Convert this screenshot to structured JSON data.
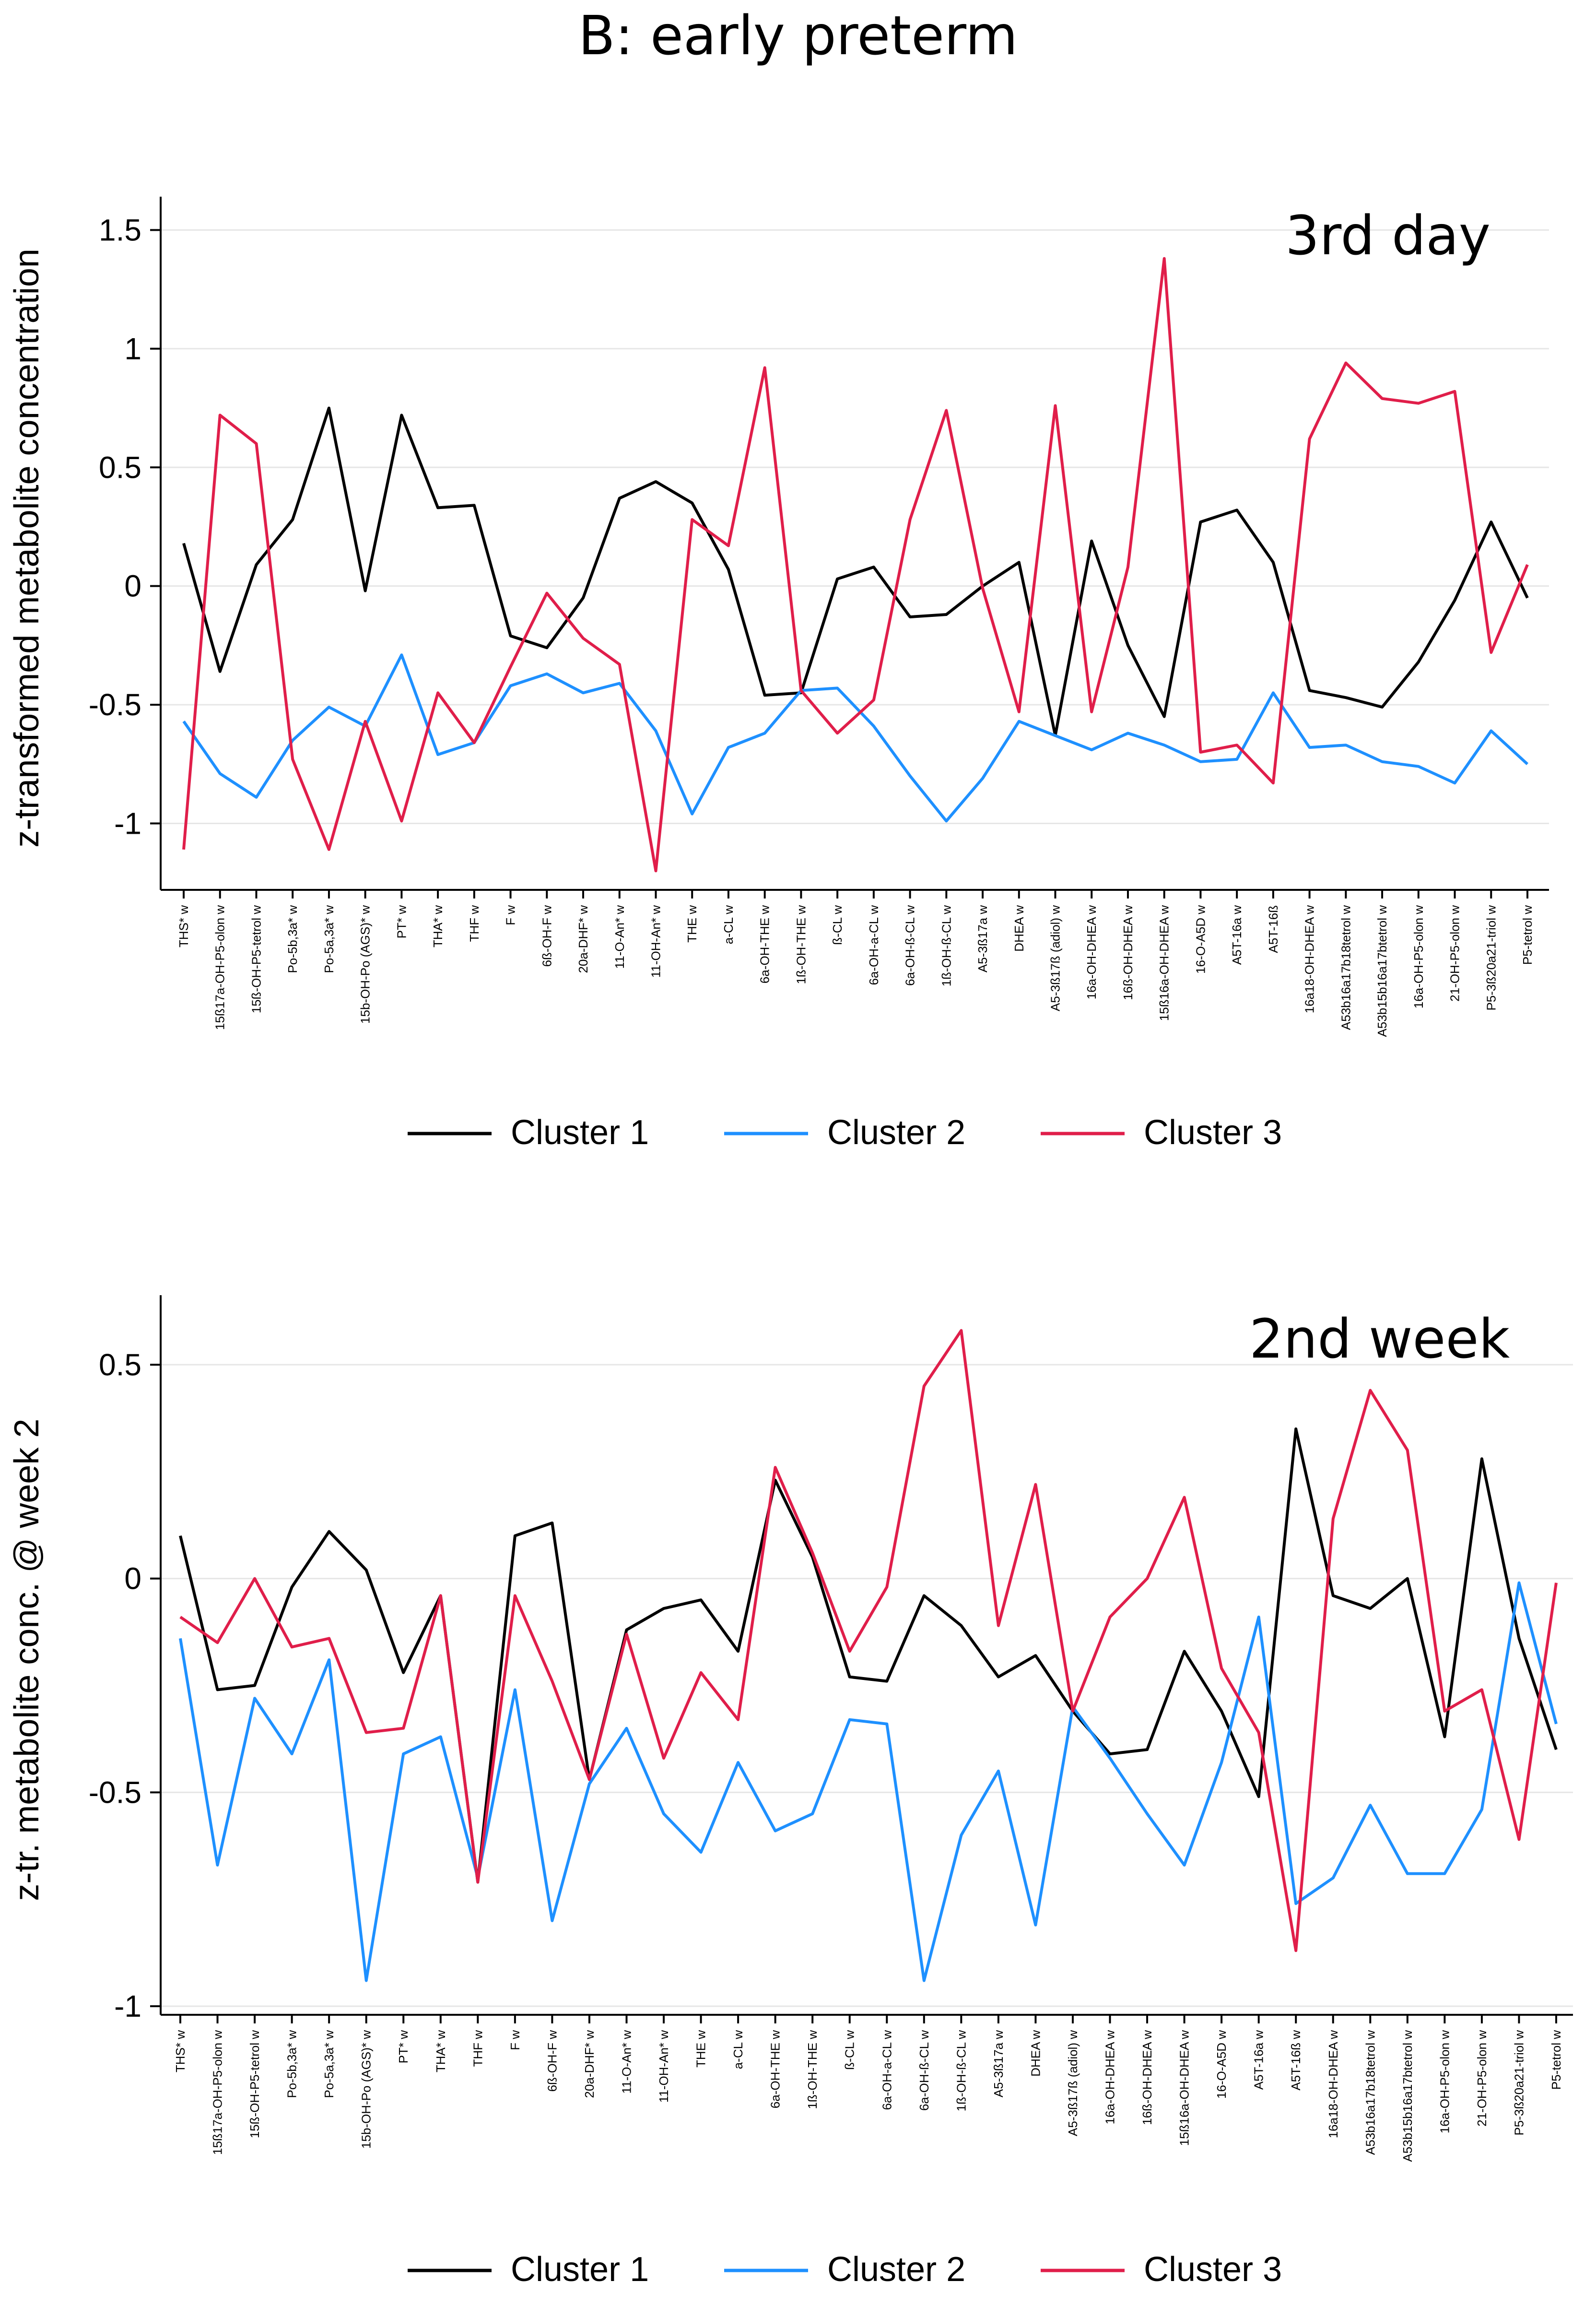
{
  "title": "B: early preterm",
  "colors": {
    "cluster1": "#000000",
    "cluster2": "#1e90ff",
    "cluster3": "#e01e4a"
  },
  "chart_data": [
    {
      "type": "line",
      "panel_label": "3rd day",
      "ylabel": "z-transformed metabolite concentration",
      "xlabel": "",
      "ylim": [
        -1.28,
        1.6
      ],
      "yticks": [
        -1,
        -0.5,
        0,
        0.5,
        1,
        1.5
      ],
      "ytick_labels": [
        "-1",
        "-0.5",
        "0",
        "0.5",
        "1",
        "1.5"
      ],
      "grid": true,
      "legend_position": "bottom",
      "categories": [
        "THS* w",
        "15ß17a-OH-P5-olon w",
        "15ß-OH-P5-tetrol w",
        "Po-5b,3a* w",
        "Po-5a,3a* w",
        "15b-OH-Po (AGS)* w",
        "PT* w",
        "THA* w",
        "THF w",
        "F w",
        "6ß-OH-F w",
        "20a-DHF* w",
        "11-O-An* w",
        "11-OH-An* w",
        "THE w",
        "a-CL w",
        "6a-OH-THE w",
        "1ß-OH-THE w",
        "ß-CL w",
        "6a-OH-a-CL w",
        "6a-OH-ß-CL w",
        "1ß-OH-ß-CL w",
        "A5-3ß17a w",
        "DHEA w",
        "A5-3ß17ß (adiol) w",
        "16a-OH-DHEA w",
        "16ß-OH-DHEA w",
        "15ß16a-OH-DHEA w",
        "16-O-A5D w",
        "A5T-16a w",
        "A5T-16ß",
        "16a18-OH-DHEA w",
        "A53b16a17b18tetrol w",
        "A53b15b16a17btetrol w",
        "16a-OH-P5-olon w",
        "21-OH-P5-olon w",
        "P5-3ß20a21-triol w",
        "P5-tetrol w"
      ],
      "series": [
        {
          "name": "Cluster 1",
          "values": [
            0.18,
            -0.36,
            0.09,
            0.28,
            0.75,
            -0.02,
            0.72,
            0.33,
            0.34,
            -0.21,
            -0.26,
            -0.05,
            0.37,
            0.44,
            0.35,
            0.07,
            -0.46,
            -0.45,
            0.03,
            0.08,
            -0.13,
            -0.12,
            0.0,
            0.1,
            -0.63,
            0.19,
            -0.25,
            -0.55,
            0.27,
            0.32,
            0.1,
            -0.44,
            -0.47,
            -0.51,
            -0.32,
            -0.06,
            0.27,
            -0.05
          ]
        },
        {
          "name": "Cluster 2",
          "values": [
            -0.57,
            -0.79,
            -0.89,
            -0.65,
            -0.51,
            -0.59,
            -0.29,
            -0.71,
            -0.66,
            -0.42,
            -0.37,
            -0.45,
            -0.41,
            -0.61,
            -0.96,
            -0.68,
            -0.62,
            -0.44,
            -0.43,
            -0.59,
            -0.8,
            -0.99,
            -0.81,
            -0.57,
            -0.63,
            -0.69,
            -0.62,
            -0.67,
            -0.74,
            -0.73,
            -0.45,
            -0.68,
            -0.67,
            -0.74,
            -0.76,
            -0.83,
            -0.61,
            -0.75
          ]
        },
        {
          "name": "Cluster 3",
          "values": [
            -1.11,
            0.72,
            0.6,
            -0.73,
            -1.11,
            -0.57,
            -0.99,
            -0.45,
            -0.66,
            -0.34,
            -0.03,
            -0.22,
            -0.33,
            -1.2,
            0.28,
            0.17,
            0.92,
            -0.44,
            -0.62,
            -0.48,
            0.28,
            0.74,
            -0.01,
            -0.53,
            0.76,
            -0.53,
            0.08,
            1.38,
            -0.7,
            -0.67,
            -0.83,
            0.62,
            0.94,
            0.79,
            0.77,
            0.82,
            -0.28,
            0.09
          ]
        }
      ]
    },
    {
      "type": "line",
      "panel_label": "2nd week",
      "ylabel": "z-tr. metabolite conc. @ week 2",
      "xlabel": "",
      "ylim": [
        -1.02,
        0.64
      ],
      "yticks": [
        -1,
        -0.5,
        0,
        0.5
      ],
      "ytick_labels": [
        "-1",
        "-0.5",
        "0",
        "0.5"
      ],
      "grid": true,
      "legend_position": "bottom",
      "categories": [
        "THS* w",
        "15ß17a-OH-P5-olon w",
        "15ß-OH-P5-tetrol w",
        "Po-5b,3a* w",
        "Po-5a,3a* w",
        "15b-OH-Po (AGS)* w",
        "PT* w",
        "THA* w",
        "THF w",
        "F w",
        "6ß-OH-F w",
        "20a-DHF* w",
        "11-O-An* w",
        "11-OH-An* w",
        "THE w",
        "a-CL w",
        "6a-OH-THE w",
        "1ß-OH-THE w",
        "ß-CL w",
        "6a-OH-a-CL w",
        "6a-OH-ß-CL w",
        "1ß-OH-ß-CL w",
        "A5-3ß17a w",
        "DHEA w",
        "A5-3ß17ß (adiol) w",
        "16a-OH-DHEA w",
        "16ß-OH-DHEA w",
        "15ß16a-OH-DHEA w",
        "16-O-A5D w",
        "A5T-16a w",
        "A5T-16ß w",
        "16a18-OH-DHEA w",
        "A53b16a17b18tetrol w",
        "A53b15b16a17btetrol w",
        "16a-OH-P5-olon w",
        "21-OH-P5-olon w",
        "P5-3ß20a21-triol w",
        "P5-tetrol w"
      ],
      "series": [
        {
          "name": "Cluster 1",
          "values": [
            0.1,
            -0.26,
            -0.25,
            -0.02,
            0.11,
            0.02,
            -0.22,
            -0.04,
            -0.71,
            0.1,
            0.13,
            -0.47,
            -0.12,
            -0.07,
            -0.05,
            -0.17,
            0.23,
            0.05,
            -0.23,
            -0.24,
            -0.04,
            -0.11,
            -0.23,
            -0.18,
            -0.31,
            -0.41,
            -0.4,
            -0.17,
            -0.31,
            -0.51,
            0.35,
            -0.04,
            -0.07,
            0.0,
            -0.37,
            0.28,
            -0.14,
            -0.4
          ]
        },
        {
          "name": "Cluster 2",
          "values": [
            -0.14,
            -0.67,
            -0.28,
            -0.41,
            -0.19,
            -0.94,
            -0.41,
            -0.37,
            -0.7,
            -0.26,
            -0.8,
            -0.48,
            -0.35,
            -0.55,
            -0.64,
            -0.43,
            -0.59,
            -0.55,
            -0.33,
            -0.34,
            -0.94,
            -0.6,
            -0.45,
            -0.81,
            -0.3,
            -0.42,
            -0.55,
            -0.67,
            -0.43,
            -0.09,
            -0.76,
            -0.7,
            -0.53,
            -0.69,
            -0.69,
            -0.54,
            -0.01,
            -0.34
          ]
        },
        {
          "name": "Cluster 3",
          "values": [
            -0.09,
            -0.15,
            0.0,
            -0.16,
            -0.14,
            -0.36,
            -0.35,
            -0.04,
            -0.71,
            -0.04,
            -0.24,
            -0.47,
            -0.13,
            -0.42,
            -0.22,
            -0.33,
            0.26,
            0.06,
            -0.17,
            -0.02,
            0.45,
            0.58,
            -0.11,
            0.22,
            -0.31,
            -0.09,
            0.0,
            0.19,
            -0.21,
            -0.36,
            -0.87,
            0.14,
            0.44,
            0.3,
            -0.31,
            -0.26,
            -0.61,
            -0.01
          ]
        }
      ]
    }
  ]
}
